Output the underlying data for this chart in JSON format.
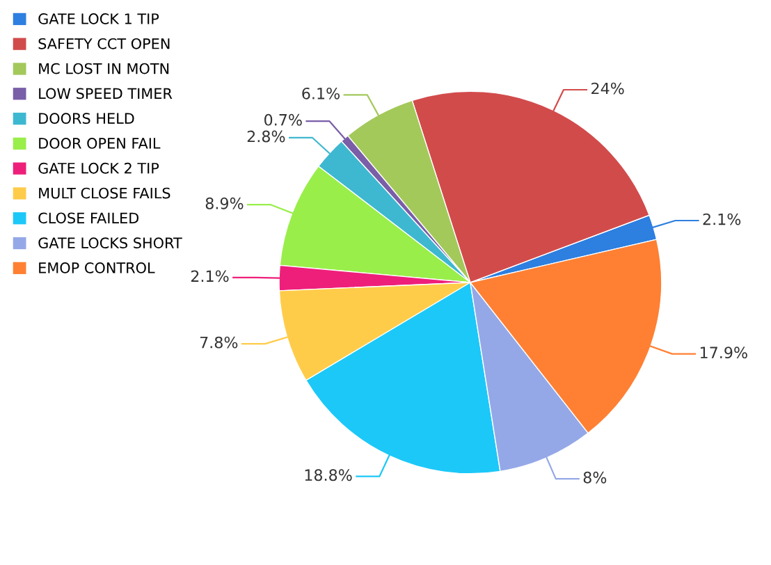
{
  "chart_data": {
    "type": "pie",
    "categories": [
      "GATE LOCK 1 TIP",
      "SAFETY CCT OPEN",
      "MC LOST IN MOTN",
      "LOW SPEED TIMER",
      "DOORS HELD",
      "DOOR OPEN FAIL",
      "GATE LOCK 2 TIP",
      "MULT CLOSE FAILS",
      "CLOSE FAILED",
      "GATE LOCKS SHORT",
      "EMOP CONTROL"
    ],
    "values": [
      2.1,
      24,
      6.1,
      0.7,
      2.8,
      8.9,
      2.1,
      7.8,
      18.8,
      8,
      17.9
    ],
    "value_labels": [
      "2.1%",
      "24%",
      "6.1%",
      "0.7%",
      "2.8%",
      "8.9%",
      "2.1%",
      "7.8%",
      "18.8%",
      "8%",
      "17.9%"
    ],
    "colors": [
      "#2d7fe0",
      "#d24b4b",
      "#a3c95a",
      "#7a5ea8",
      "#3eb8d0",
      "#99ee4a",
      "#ee1f7a",
      "#ffcc4a",
      "#1cc8f8",
      "#94a8e8",
      "#ff8033"
    ],
    "legend": "top left"
  }
}
